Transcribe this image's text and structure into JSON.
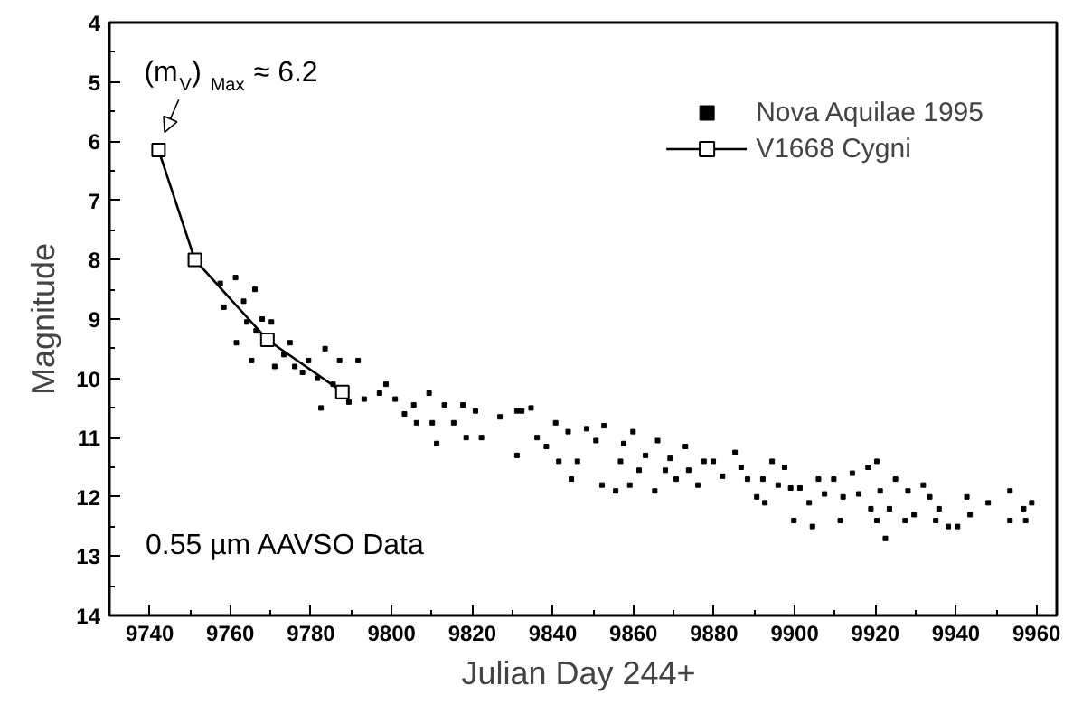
{
  "chart_data": {
    "type": "scatter",
    "xlabel": "Julian Day  244+",
    "ylabel": "Magnitude",
    "xlim": [
      9730,
      9965
    ],
    "ylim": [
      14,
      4
    ],
    "xticks": [
      9740,
      9760,
      9780,
      9800,
      9820,
      9840,
      9860,
      9880,
      9900,
      9920,
      9940,
      9960
    ],
    "yticks": [
      4,
      5,
      6,
      7,
      8,
      9,
      10,
      11,
      12,
      13,
      14
    ],
    "grid": false,
    "legend": "top right",
    "annotations": [
      {
        "text": "(m$_{V}$)$_{Max}$ ≈ 6.2",
        "x": 9742.2,
        "y": 6.15
      },
      "0.55 µm AAVSO Data"
    ],
    "series": [
      {
        "name": "Nova Aquilae 1995",
        "type": "scatter",
        "marker": "square",
        "color": "#000000",
        "x": [
          9757.5,
          9758.4,
          9761.3,
          9761.5,
          9763.3,
          9764.1,
          9766.1,
          9765.3,
          9766.4,
          9767.9,
          9770.2,
          9771.0,
          9773.3,
          9774.8,
          9776.0,
          9777.9,
          9779.4,
          9781.6,
          9783.5,
          9782.5,
          9785.5,
          9787.1,
          9791.7,
          9789.4,
          9793.2,
          9797.0,
          9798.6,
          9800.9,
          9803.2,
          9805.5,
          9806.2,
          9809.3,
          9810.1,
          9811.2,
          9813.1,
          9815.4,
          9817.7,
          9818.5,
          9820.8,
          9822.3,
          9826.9,
          9831.1,
          9831.1,
          9832.3,
          9834.6,
          9836.1,
          9838.4,
          9840.7,
          9841.5,
          9843.8,
          9844.6,
          9846.1,
          9848.4,
          9850.7,
          9852.2,
          9852.7,
          9855.6,
          9856.8,
          9857.6,
          9859.1,
          9859.9,
          9861.4,
          9863.0,
          9865.3,
          9866.0,
          9867.9,
          9869.1,
          9870.6,
          9872.9,
          9873.7,
          9876.0,
          9877.5,
          9879.8,
          9882.1,
          9885.2,
          9886.7,
          9888.3,
          9890.6,
          9892.1,
          9892.6,
          9894.4,
          9895.9,
          9897.5,
          9899.0,
          9899.8,
          9901.3,
          9903.6,
          9904.4,
          9905.9,
          9907.4,
          9909.7,
          9911.3,
          9912.0,
          9914.3,
          9915.9,
          9918.2,
          9918.9,
          9920.4,
          9920.4,
          9921.2,
          9922.5,
          9923.5,
          9925.0,
          9927.4,
          9928.1,
          9929.6,
          9931.9,
          9933.5,
          9935.0,
          9935.8,
          9938.1,
          9940.4,
          9942.7,
          9943.5,
          9948.0,
          9953.4,
          9953.4,
          9956.8,
          9957.3,
          9958.8
        ],
        "values": [
          8.4,
          8.8,
          8.3,
          9.4,
          8.7,
          9.05,
          8.5,
          9.7,
          9.2,
          9.0,
          9.05,
          9.8,
          9.6,
          9.4,
          9.8,
          9.9,
          9.7,
          10.0,
          9.5,
          10.5,
          10.1,
          9.7,
          9.7,
          10.4,
          10.35,
          10.25,
          10.1,
          10.35,
          10.6,
          10.45,
          10.75,
          10.25,
          10.75,
          11.1,
          10.45,
          10.75,
          10.45,
          11.0,
          10.55,
          11.0,
          10.65,
          10.55,
          11.3,
          10.55,
          10.5,
          11.0,
          11.15,
          10.75,
          11.4,
          10.9,
          11.7,
          11.4,
          10.85,
          11.05,
          11.8,
          10.8,
          11.9,
          11.4,
          11.1,
          11.8,
          10.9,
          11.55,
          11.3,
          11.9,
          11.05,
          11.55,
          11.35,
          11.7,
          11.15,
          11.55,
          11.8,
          11.4,
          11.4,
          11.65,
          11.25,
          11.5,
          11.7,
          12.0,
          11.7,
          12.1,
          11.4,
          11.8,
          11.5,
          11.85,
          12.4,
          11.85,
          12.1,
          12.5,
          11.7,
          11.95,
          11.7,
          12.4,
          12.0,
          11.6,
          11.95,
          11.5,
          12.2,
          11.4,
          12.4,
          11.9,
          12.7,
          12.2,
          11.7,
          12.4,
          11.9,
          12.3,
          11.8,
          12.0,
          12.4,
          12.2,
          12.5,
          12.5,
          12.0,
          12.3,
          12.1,
          11.9,
          12.4,
          12.2,
          12.4,
          12.1
        ]
      },
      {
        "name": "V1668 Cygni",
        "type": "line",
        "marker": "square",
        "line_style": "solid",
        "color": "#000000",
        "x": [
          9742.2,
          9751.2,
          9769.2,
          9787.8
        ],
        "values": [
          6.15,
          8.0,
          9.35,
          10.23
        ]
      }
    ]
  }
}
